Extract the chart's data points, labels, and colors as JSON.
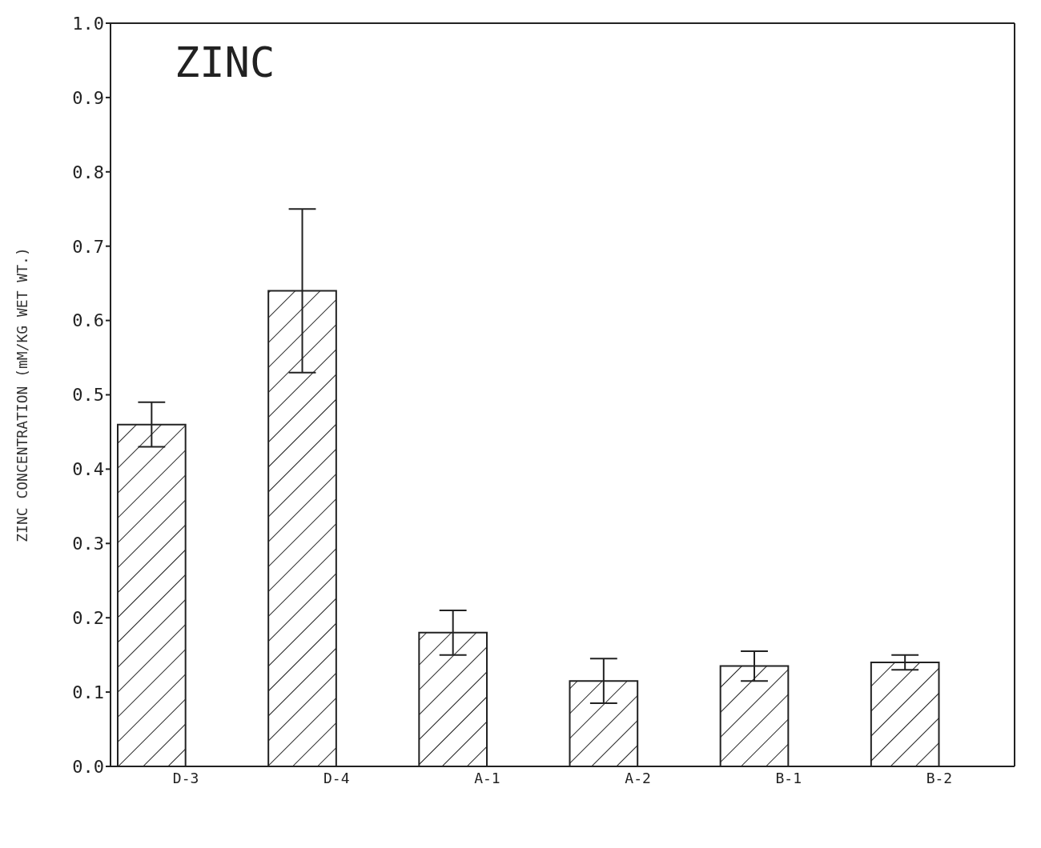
{
  "chart_data": {
    "type": "bar",
    "title": "ZINC",
    "ylabel": "ZINC CONCENTRATION (mM/KG WET WT.)",
    "categories": [
      "D-3",
      "D-4",
      "A-1",
      "A-2",
      "B-1",
      "B-2"
    ],
    "values": [
      0.46,
      0.64,
      0.18,
      0.115,
      0.135,
      0.14
    ],
    "errors": [
      [
        0.43,
        0.49
      ],
      [
        0.53,
        0.75
      ],
      [
        0.15,
        0.21
      ],
      [
        0.085,
        0.145
      ],
      [
        0.115,
        0.155
      ],
      [
        0.13,
        0.15
      ]
    ],
    "color": "#222222",
    "ylim": [
      0,
      1
    ],
    "yticks": [
      {
        "value": 0,
        "label": "0.0"
      },
      {
        "value": 0.1,
        "label": "0.1"
      },
      {
        "value": 0.2,
        "label": "0.2"
      },
      {
        "value": 0.3,
        "label": "0.3"
      },
      {
        "value": 0.4,
        "label": "0.4"
      },
      {
        "value": 0.5,
        "label": "0.5"
      },
      {
        "value": 0.6,
        "label": "0.6"
      },
      {
        "value": 0.7,
        "label": "0.7"
      },
      {
        "value": 0.8,
        "label": "0.8"
      },
      {
        "value": 0.9,
        "label": "0.9"
      },
      {
        "value": 1,
        "label": "1.0"
      }
    ],
    "grid": false,
    "legend": false
  }
}
